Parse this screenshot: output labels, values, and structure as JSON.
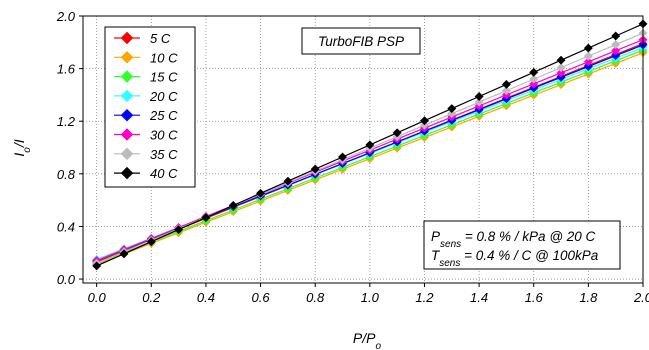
{
  "chart_data": {
    "type": "line",
    "title": "",
    "xlabel": "P/P",
    "xlabel_sub": "o",
    "ylabel": "I/I",
    "ylabel_sub": "o",
    "xlim": [
      -0.05,
      2.0
    ],
    "ylim": [
      -0.03,
      2.0
    ],
    "x_ticks": [
      "0.0",
      "0.2",
      "0.4",
      "0.6",
      "0.8",
      "1.0",
      "1.2",
      "1.4",
      "1.6",
      "1.8",
      "2.0"
    ],
    "y_ticks": [
      "0.0",
      "0.4",
      "0.8",
      "1.2",
      "1.6",
      "2.0"
    ],
    "grid": "dotted",
    "legend_position": "top-left",
    "x": [
      0.0,
      0.1,
      0.2,
      0.3,
      0.4,
      0.5,
      0.6,
      0.7,
      0.8,
      0.9,
      1.0,
      1.1,
      1.2,
      1.3,
      1.4,
      1.5,
      1.6,
      1.7,
      1.8,
      1.9,
      2.0
    ],
    "series": [
      {
        "name": "5 C",
        "color": "#ff0000",
        "start": 0.13,
        "end": 1.79
      },
      {
        "name": "10 C",
        "color": "#ffa500",
        "start": 0.11,
        "end": 1.72
      },
      {
        "name": "15 C",
        "color": "#33ff33",
        "start": 0.12,
        "end": 1.74
      },
      {
        "name": "20 C",
        "color": "#33ffff",
        "start": 0.15,
        "end": 1.76
      },
      {
        "name": "25 C",
        "color": "#0000ff",
        "start": 0.14,
        "end": 1.78
      },
      {
        "name": "30 C",
        "color": "#ff00cc",
        "start": 0.14,
        "end": 1.82
      },
      {
        "name": "35 C",
        "color": "#bbbbbb",
        "start": 0.12,
        "end": 1.87
      },
      {
        "name": "40 C",
        "color": "#000000",
        "start": 0.1,
        "end": 1.94
      }
    ],
    "annotations": {
      "box_title": "TurboFIB PSP",
      "p_sens_symbol": "P",
      "p_sens_sub": "sens",
      "p_sens_text": " = 0.8 % / kPa @ 20 C",
      "t_sens_symbol": "T",
      "t_sens_sub": "sens",
      "t_sens_text": " = 0.4 % / C @ 100kPa"
    }
  }
}
